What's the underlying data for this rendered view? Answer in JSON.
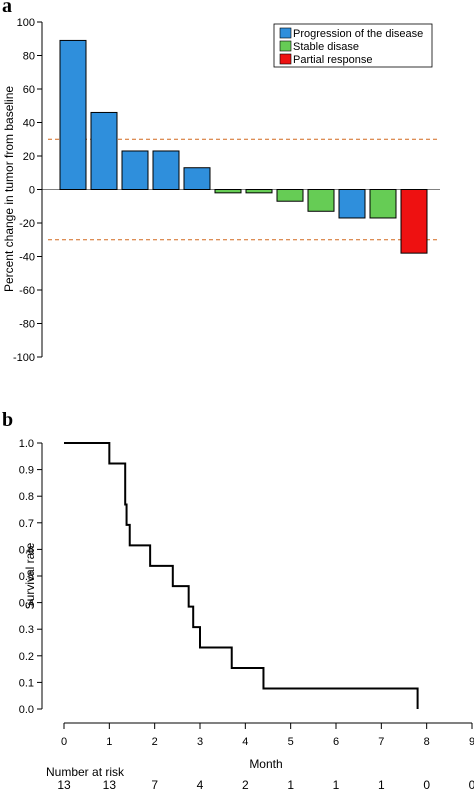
{
  "chart_data": [
    {
      "type": "bar",
      "panel_label": "a",
      "ylabel": "Percent change in tumor from baseline",
      "ylim": [
        -100,
        100
      ],
      "yticks": [
        -100,
        -80,
        -60,
        -40,
        -20,
        0,
        20,
        40,
        60,
        80,
        100
      ],
      "reference_lines": [
        30,
        -30
      ],
      "values": [
        89,
        46,
        23,
        23,
        13,
        -2,
        -2,
        -7,
        -13,
        -17,
        -17,
        -38
      ],
      "groups": [
        "Progression of the disease",
        "Progression of the disease",
        "Progression of the disease",
        "Progression of the disease",
        "Progression of the disease",
        "Stable disase",
        "Stable disase",
        "Stable disase",
        "Stable disase",
        "Progression of the disease",
        "Stable disase",
        "Partial response"
      ],
      "legend": [
        {
          "label": "Progression of the disease",
          "color": "#2f8fdc"
        },
        {
          "label": "Stable disase",
          "color": "#66cc55"
        },
        {
          "label": "Partial response",
          "color": "#ee1111"
        }
      ],
      "legend_position": "top-right",
      "colors": {
        "reference_line": "#d2691e"
      }
    },
    {
      "type": "line",
      "panel_label": "b",
      "xlabel": "Month",
      "ylabel": "Survival rate",
      "xlim": [
        0,
        9
      ],
      "ylim": [
        0,
        1
      ],
      "xticks": [
        0,
        1,
        2,
        3,
        4,
        5,
        6,
        7,
        8,
        9
      ],
      "yticks": [
        0.0,
        0.1,
        0.2,
        0.3,
        0.4,
        0.5,
        0.6,
        0.7,
        0.8,
        0.9,
        1.0
      ],
      "ytick_labels": [
        "0.0",
        "0.1",
        "0.2",
        "0.3",
        "0.4",
        "0.5",
        "0.6",
        "0.7",
        "0.8",
        "0.9",
        "1.0"
      ],
      "step": true,
      "series": [
        {
          "x": [
            0,
            1.0,
            1.35,
            1.38,
            1.45,
            1.9,
            2.4,
            2.75,
            2.85,
            3.0,
            3.7,
            4.4,
            7.8,
            7.8
          ],
          "y": [
            1.0,
            0.923,
            0.769,
            0.692,
            0.615,
            0.538,
            0.462,
            0.385,
            0.308,
            0.231,
            0.154,
            0.077,
            0.077,
            0.0
          ]
        }
      ],
      "risk_table": {
        "label": "Number at risk",
        "counts": [
          "13",
          "13",
          "7",
          "4",
          "2",
          "1",
          "1",
          "1",
          "0",
          "0"
        ]
      }
    }
  ]
}
